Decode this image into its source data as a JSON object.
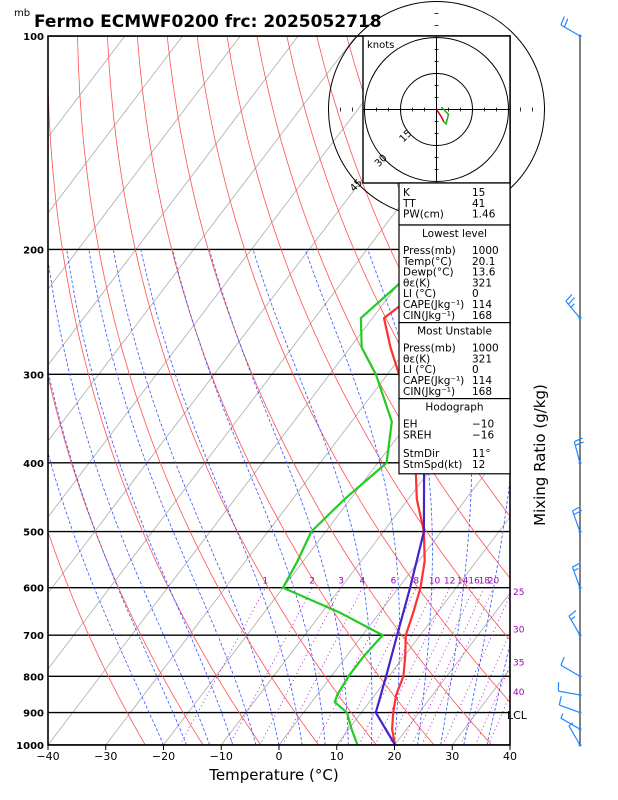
{
  "chart_data": {
    "type": "line",
    "title": "Fermo ECMWF0200  frc: 2025052718",
    "pressure_unit": "mb",
    "xlabel": "Temperature (°C)",
    "right_label": "Mixing Ratio (g/kg)",
    "xlim": [
      -40,
      40
    ],
    "ylim": [
      1000,
      100
    ],
    "log_y": true,
    "x_ticks": [
      "−40",
      "−30",
      "−20",
      "−10",
      "0",
      "10",
      "20",
      "30",
      "40"
    ],
    "p_ticks": [
      "1000",
      "900",
      "800",
      "700",
      "600",
      "500",
      "400",
      "300",
      "200",
      "100"
    ],
    "mixing_ratio_labels": [
      "1",
      "2",
      "3",
      "4",
      "6",
      "8",
      "10",
      "12",
      "14",
      "16",
      "18",
      "20",
      "25",
      "30",
      "35",
      "40"
    ],
    "lcl_label": "LCL",
    "series": [
      {
        "key": "temperature",
        "color": "#ff3030",
        "points": [
          [
            1000,
            20.1
          ],
          [
            950,
            17.5
          ],
          [
            900,
            15.5
          ],
          [
            850,
            13.7
          ],
          [
            800,
            12.5
          ],
          [
            750,
            10.2
          ],
          [
            700,
            7.5
          ],
          [
            650,
            5.8
          ],
          [
            600,
            3.8
          ],
          [
            550,
            1.0
          ],
          [
            500,
            -3.0
          ],
          [
            450,
            -8.5
          ],
          [
            400,
            -13.5
          ],
          [
            350,
            -20.0
          ],
          [
            300,
            -28.0
          ],
          [
            275,
            -33.0
          ],
          [
            250,
            -38.0
          ],
          [
            225,
            -35.0
          ],
          [
            200,
            -30.0
          ],
          [
            175,
            -24.0
          ],
          [
            150,
            -17.0
          ],
          [
            125,
            -8.0
          ],
          [
            100,
            1.0
          ]
        ]
      },
      {
        "key": "dewpoint",
        "color": "#22cc22",
        "points": [
          [
            1000,
            13.6
          ],
          [
            950,
            10.5
          ],
          [
            900,
            7.5
          ],
          [
            870,
            4.0
          ],
          [
            850,
            3.5
          ],
          [
            800,
            3.0
          ],
          [
            750,
            3.0
          ],
          [
            700,
            3.5
          ],
          [
            650,
            -7.0
          ],
          [
            600,
            -20.0
          ],
          [
            550,
            -21.0
          ],
          [
            500,
            -22.5
          ],
          [
            450,
            -21.0
          ],
          [
            400,
            -18.5
          ],
          [
            350,
            -23.0
          ],
          [
            300,
            -32.0
          ],
          [
            275,
            -38.0
          ],
          [
            250,
            -42.0
          ],
          [
            225,
            -40.0
          ],
          [
            200,
            -38.0
          ],
          [
            175,
            -35.0
          ],
          [
            150,
            -31.0
          ],
          [
            125,
            -26.0
          ],
          [
            100,
            -21.0
          ]
        ]
      },
      {
        "key": "parcel",
        "color": "#4422cc",
        "points": [
          [
            1000,
            20.1
          ],
          [
            900,
            12.5
          ],
          [
            800,
            9.5
          ],
          [
            700,
            6.0
          ],
          [
            600,
            2.0
          ],
          [
            500,
            -3.0
          ],
          [
            400,
            -12.0
          ],
          [
            300,
            -25.0
          ],
          [
            200,
            -44.0
          ],
          [
            150,
            -56.0
          ],
          [
            120,
            -64.0
          ]
        ]
      }
    ],
    "hodograph": {
      "label": "knots",
      "ring_labels": [
        "15",
        "30",
        "45"
      ],
      "trace": [
        [
          0,
          0
        ],
        [
          2,
          -3
        ],
        [
          3,
          -5
        ],
        [
          4,
          -6
        ],
        [
          5,
          -2
        ],
        [
          2,
          1
        ]
      ]
    },
    "winds": [
      {
        "p": 1000,
        "dir": 330,
        "spd": 5
      },
      {
        "p": 950,
        "dir": 300,
        "spd": 5
      },
      {
        "p": 900,
        "dir": 290,
        "spd": 10
      },
      {
        "p": 850,
        "dir": 280,
        "spd": 10
      },
      {
        "p": 800,
        "dir": 300,
        "spd": 10
      },
      {
        "p": 700,
        "dir": 330,
        "spd": 15
      },
      {
        "p": 600,
        "dir": 340,
        "spd": 15
      },
      {
        "p": 500,
        "dir": 340,
        "spd": 20
      },
      {
        "p": 400,
        "dir": 345,
        "spd": 20
      },
      {
        "p": 250,
        "dir": 320,
        "spd": 25
      },
      {
        "p": 100,
        "dir": 300,
        "spd": 20
      }
    ],
    "indices": [
      {
        "label": "K",
        "value": "15"
      },
      {
        "label": "TT",
        "value": "41"
      },
      {
        "label": "PW(cm)",
        "value": "1.46"
      }
    ],
    "lowest_level": {
      "title": "Lowest level",
      "rows": [
        {
          "label": "Press(mb)",
          "value": "1000"
        },
        {
          "label": "Temp(°C)",
          "value": "20.1"
        },
        {
          "label": "Dewp(°C)",
          "value": "13.6"
        },
        {
          "label": "θε(K)",
          "value": "321"
        },
        {
          "label": "LI (°C)",
          "value": "0"
        },
        {
          "label": "CAPE(Jkg⁻¹)",
          "value": "114"
        },
        {
          "label": "CIN(Jkg⁻¹)",
          "value": "168"
        }
      ]
    },
    "most_unstable": {
      "title": "Most Unstable",
      "rows": [
        {
          "label": "Press(mb)",
          "value": "1000"
        },
        {
          "label": "θε(K)",
          "value": "321"
        },
        {
          "label": "LI (°C)",
          "value": "0"
        },
        {
          "label": "CAPE(Jkg⁻¹)",
          "value": "114"
        },
        {
          "label": "CIN(Jkg⁻¹)",
          "value": "168"
        }
      ]
    },
    "hodograph_params": {
      "title": "Hodograph",
      "rows": [
        {
          "label": "EH",
          "value": "−10"
        },
        {
          "label": "SREH",
          "value": "−16"
        },
        {
          "label": "StmDir",
          "value": "11°"
        },
        {
          "label": "StmSpd(kt)",
          "value": "12"
        }
      ]
    }
  }
}
